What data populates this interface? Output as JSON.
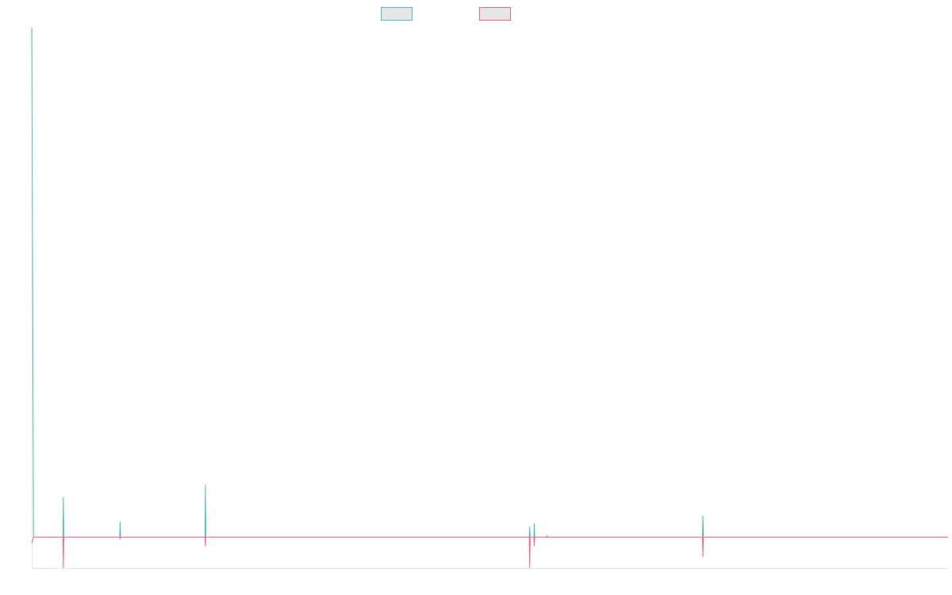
{
  "chart_data": {
    "type": "line",
    "title": "",
    "xlabel": "",
    "ylabel": "",
    "legend": "top-center",
    "grid": false,
    "x_range": [
      0,
      1000
    ],
    "ylim": [
      -1.0,
      16.5
    ],
    "series": [
      {
        "color": "#4bc0c0",
        "points": [
          [
            0,
            16.5
          ],
          [
            2,
            0
          ],
          [
            34,
            0
          ],
          [
            34.5,
            1.3
          ],
          [
            35,
            0
          ],
          [
            96,
            0
          ],
          [
            96.5,
            0.5
          ],
          [
            97,
            0
          ],
          [
            189,
            0
          ],
          [
            189.5,
            1.7
          ],
          [
            190,
            0
          ],
          [
            543,
            0
          ],
          [
            543.5,
            0.35
          ],
          [
            544,
            0
          ],
          [
            548,
            0
          ],
          [
            548.5,
            0.45
          ],
          [
            549,
            0
          ],
          [
            562,
            0
          ],
          [
            562.5,
            0.05
          ],
          [
            563,
            0
          ],
          [
            732,
            0
          ],
          [
            732.5,
            0.7
          ],
          [
            733,
            0
          ],
          [
            1000,
            0
          ]
        ]
      },
      {
        "color": "#ff6384",
        "points": [
          [
            0,
            -0.2
          ],
          [
            2,
            0
          ],
          [
            34,
            0
          ],
          [
            34.5,
            -1.0
          ],
          [
            35,
            0
          ],
          [
            96,
            0
          ],
          [
            96.5,
            -0.05
          ],
          [
            97,
            0
          ],
          [
            189,
            0
          ],
          [
            189.5,
            -0.3
          ],
          [
            190,
            0
          ],
          [
            543,
            0
          ],
          [
            543.5,
            -1.0
          ],
          [
            544,
            0
          ],
          [
            548,
            0
          ],
          [
            548.5,
            -0.3
          ],
          [
            549,
            0
          ],
          [
            732,
            0
          ],
          [
            732.5,
            -0.65
          ],
          [
            733,
            0
          ],
          [
            1000,
            0
          ]
        ]
      }
    ]
  }
}
